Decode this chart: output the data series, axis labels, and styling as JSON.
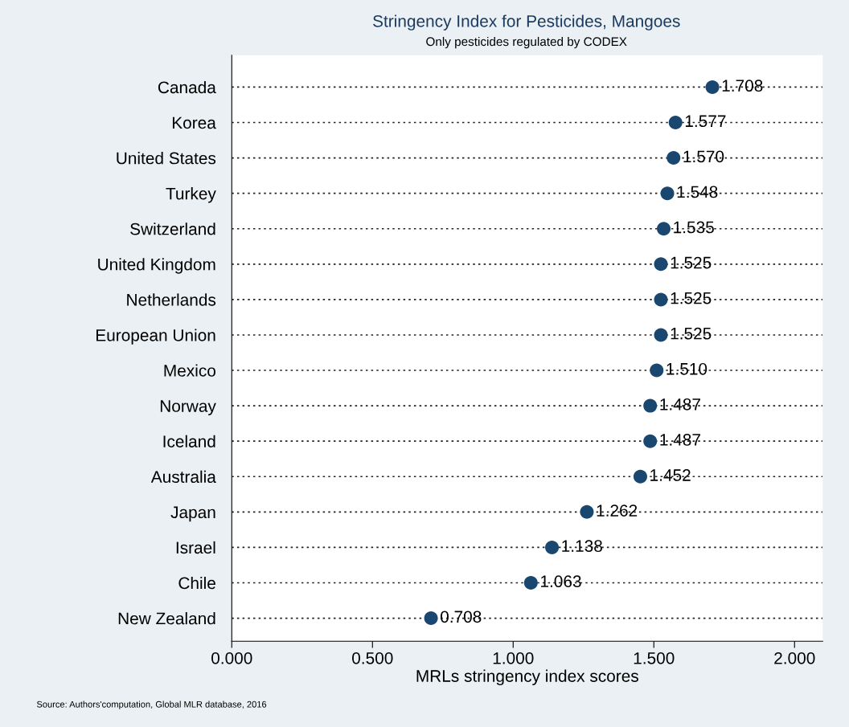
{
  "chart_data": {
    "type": "scatter",
    "orientation": "horizontal",
    "title": "Stringency Index for Pesticides, Mangoes",
    "subtitle": "Only pesticides regulated by CODEX",
    "xlabel": "MRLs stringency index scores",
    "categories": [
      "Canada",
      "Korea",
      "United States",
      "Turkey",
      "Switzerland",
      "United Kingdom",
      "Netherlands",
      "European Union",
      "Mexico",
      "Norway",
      "Iceland",
      "Australia",
      "Japan",
      "Israel",
      "Chile",
      "New Zealand"
    ],
    "series": [
      {
        "color": "#1a476f",
        "values": [
          1.708,
          1.577,
          1.57,
          1.548,
          1.535,
          1.525,
          1.525,
          1.525,
          1.51,
          1.487,
          1.487,
          1.452,
          1.262,
          1.138,
          1.063,
          0.708
        ],
        "value_labels": [
          "1.708",
          "1.577",
          "1.570",
          "1.548",
          "1.535",
          "1.525",
          "1.525",
          "1.525",
          "1.510",
          "1.487",
          "1.487",
          "1.452",
          "1.262",
          "1.138",
          "1.063",
          "0.708"
        ]
      }
    ],
    "xlim": [
      0,
      2.1
    ],
    "xticks": [
      {
        "value": 0,
        "label": "0.000"
      },
      {
        "value": 0.5,
        "label": "0.500"
      },
      {
        "value": 1.0,
        "label": "1.000"
      },
      {
        "value": 1.5,
        "label": "1.500"
      },
      {
        "value": 2.0,
        "label": "2.000"
      }
    ],
    "grid": "y",
    "marker": "circle",
    "legend": false,
    "annotations": [
      "Source: Authors'computation, Global MLR database, 2016"
    ]
  }
}
